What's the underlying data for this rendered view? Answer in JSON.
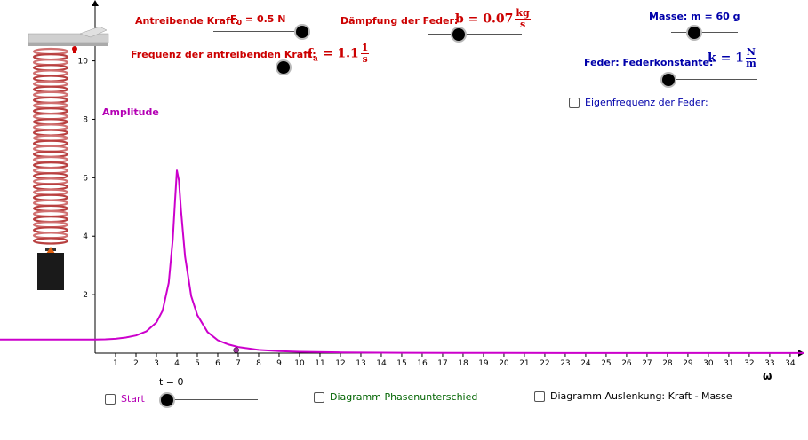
{
  "controls": {
    "force_label": "Antreibende Kraft:",
    "force_value": "F",
    "force_sub": "0",
    "force_rest": " = 0.5 N",
    "damping_label": "Dämpfung der Feder:",
    "damping_value": "b = 0.07",
    "damping_unit_num": "kg",
    "damping_unit_den": "s",
    "frequency_label": "Frequenz der antreibenden Kraft:",
    "frequency_value_f": "f",
    "frequency_value_sub": "a",
    "frequency_value_rest": " = 1.1",
    "frequency_unit_num": "1",
    "frequency_unit_den": "s",
    "mass_label": "Masse:  m = 60 g",
    "spring_label": "Feder: Federkonstante:",
    "spring_value": "k = 1",
    "spring_unit_num": "N",
    "spring_unit_den": "m",
    "eigen_checkbox": "Eigenfrequenz der Feder:",
    "time_label": "t = 0",
    "start_checkbox": "Start",
    "phase_checkbox": "Diagramm Phasenunterschied",
    "displacement_checkbox": "Diagramm Auslenkung: Kraft - Masse"
  },
  "slider_levels": {
    "force": 1.0,
    "damping": 0.32,
    "frequency": 0.0,
    "mass": 0.35,
    "spring": 0.0,
    "time": 0.0
  },
  "colors": {
    "curve": "#cc00cc",
    "point": "#993399",
    "red_label": "#cc0000",
    "blue_label": "#0000aa",
    "magenta_label": "#b400b4",
    "green_label": "#006400"
  },
  "chart_data": {
    "type": "line",
    "ylabel": "Amplitude",
    "xlabel": "ω",
    "xlim": [
      -0.1,
      34.7
    ],
    "ylim": [
      -0.0,
      11.9
    ],
    "x_ticks": [
      1,
      2,
      3,
      4,
      5,
      6,
      7,
      8,
      9,
      10,
      11,
      12,
      13,
      14,
      15,
      16,
      17,
      18,
      19,
      20,
      21,
      22,
      23,
      24,
      25,
      26,
      27,
      28,
      29,
      30,
      31,
      32,
      33,
      34
    ],
    "y_ticks": [
      2,
      4,
      6,
      8,
      10
    ],
    "series": [
      {
        "points": [
          [
            0,
            0.46
          ],
          [
            0.5,
            0.47
          ],
          [
            1,
            0.49
          ],
          [
            1.5,
            0.53
          ],
          [
            2,
            0.6
          ],
          [
            2.5,
            0.74
          ],
          [
            3,
            1.05
          ],
          [
            3.3,
            1.45
          ],
          [
            3.6,
            2.4
          ],
          [
            3.8,
            3.9
          ],
          [
            3.9,
            5.1
          ],
          [
            4.0,
            6.25
          ],
          [
            4.1,
            5.9
          ],
          [
            4.2,
            4.9
          ],
          [
            4.4,
            3.3
          ],
          [
            4.7,
            1.95
          ],
          [
            5,
            1.3
          ],
          [
            5.5,
            0.72
          ],
          [
            6,
            0.44
          ],
          [
            6.5,
            0.3
          ],
          [
            7,
            0.21
          ],
          [
            8,
            0.11
          ],
          [
            9,
            0.07
          ],
          [
            10,
            0.045
          ],
          [
            12,
            0.025
          ],
          [
            15,
            0.013
          ],
          [
            20,
            0.006
          ],
          [
            25,
            0.004
          ],
          [
            30,
            0.003
          ],
          [
            34.7,
            0.002
          ]
        ]
      }
    ],
    "marker": {
      "x": 6.9,
      "y": 0.1
    }
  }
}
